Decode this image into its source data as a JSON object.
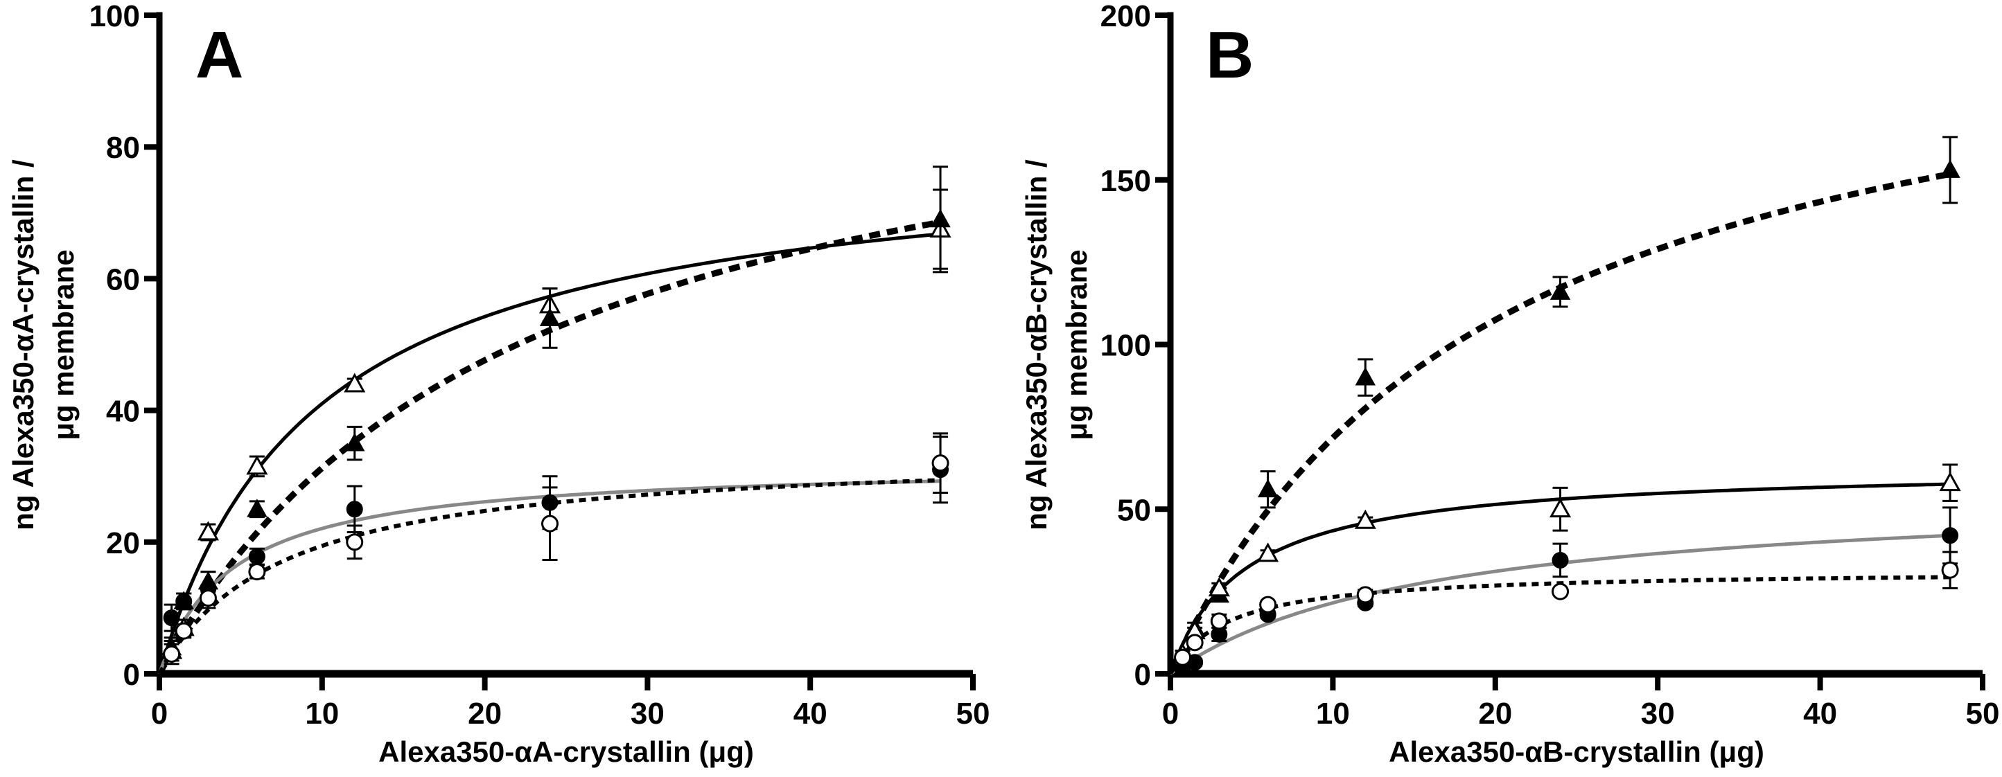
{
  "chart_data": [
    {
      "type": "scatter",
      "panel_label": "A",
      "title": "",
      "xlabel": "Alexa350-αA-crystallin (μg)",
      "ylabel_line1": "ng Alexa350-αA-crystallin /",
      "ylabel_line2": "μg membrane",
      "xlim": [
        0,
        50
      ],
      "ylim": [
        0,
        100
      ],
      "xticks": [
        0,
        10,
        20,
        30,
        40,
        50
      ],
      "yticks": [
        0,
        20,
        40,
        60,
        80,
        100
      ],
      "grid": false,
      "legend": "none",
      "x": [
        0.75,
        1.5,
        3,
        6,
        12,
        24,
        48
      ],
      "series": [
        {
          "name": "open-triangle",
          "marker": "open-triangle",
          "line_style": "solid",
          "line_color": "#000000",
          "values": [
            3.5,
            7,
            21.5,
            31.5,
            44,
            56,
            67.5
          ],
          "errors": [
            1.5,
            1.2,
            1.2,
            1.5,
            0.8,
            2.5,
            6
          ],
          "fit": {
            "model": "Bmax*x/(Kd+x)",
            "Bmax": 80,
            "Kd": 9.5
          }
        },
        {
          "name": "filled-triangle",
          "marker": "filled-triangle",
          "line_style": "dashed-heavy",
          "line_color": "#000000",
          "values": [
            4,
            11,
            14,
            25,
            35,
            54,
            69
          ],
          "errors": [
            1.5,
            1.2,
            1.5,
            1.2,
            2.5,
            4.5,
            8
          ],
          "fit": {
            "model": "Bmax*x/(Kd+x)",
            "Bmax": 100,
            "Kd": 22
          }
        },
        {
          "name": "filled-circle",
          "marker": "filled-circle",
          "line_style": "solid",
          "line_color": "#888888",
          "values": [
            8.5,
            11,
            13,
            17.8,
            25,
            26,
            31
          ],
          "errors": [
            2,
            1.2,
            2.5,
            1.2,
            3.5,
            4,
            5
          ],
          "fit": {
            "model": "Bmax*x/(Kd+x)",
            "Bmax": 32,
            "Kd": 4.5
          }
        },
        {
          "name": "open-circle",
          "marker": "open-circle",
          "line_style": "dotted",
          "line_color": "#000000",
          "values": [
            3,
            6.5,
            11.5,
            15.5,
            20,
            22.8,
            32
          ],
          "errors": [
            1.5,
            1,
            1.5,
            1,
            2.5,
            5.5,
            4.5
          ],
          "fit": {
            "model": "Bmax*x/(Kd+x)",
            "Bmax": 34,
            "Kd": 7.5
          }
        }
      ]
    },
    {
      "type": "scatter",
      "panel_label": "B",
      "title": "",
      "xlabel": "Alexa350-αB-crystallin (μg)",
      "ylabel_line1": "ng Alexa350-αB-crystallin /",
      "ylabel_line2": "μg membrane",
      "xlim": [
        0,
        50
      ],
      "ylim": [
        0,
        200
      ],
      "xticks": [
        0,
        10,
        20,
        30,
        40,
        50
      ],
      "yticks": [
        0,
        50,
        100,
        150,
        200
      ],
      "grid": false,
      "legend": "none",
      "x": [
        0.75,
        1.5,
        3,
        6,
        12,
        24,
        48
      ],
      "series": [
        {
          "name": "filled-triangle",
          "marker": "filled-triangle",
          "line_style": "dashed-heavy",
          "line_color": "#000000",
          "values": [
            6,
            14,
            24,
            56,
            90,
            116,
            153
          ],
          "errors": [
            1,
            1.5,
            2,
            5.5,
            5.5,
            4.5,
            10
          ],
          "fit": {
            "model": "Bmax*x/(Kd+x)",
            "Bmax": 215,
            "Kd": 20
          }
        },
        {
          "name": "open-triangle",
          "marker": "open-triangle",
          "line_style": "solid",
          "line_color": "#000000",
          "values": [
            6,
            13,
            26,
            36.5,
            46.5,
            50,
            58
          ],
          "errors": [
            1,
            1,
            1.5,
            1,
            1,
            6.5,
            5.5
          ],
          "fit": {
            "model": "Bmax*x/(Kd+x)",
            "Bmax": 63,
            "Kd": 4.5
          }
        },
        {
          "name": "filled-circle",
          "marker": "filled-circle",
          "line_style": "solid",
          "line_color": "#888888",
          "values": [
            1.5,
            3.5,
            12,
            18,
            21.5,
            34.5,
            42
          ],
          "errors": [
            0.5,
            1,
            2,
            1,
            1,
            5,
            8.5
          ],
          "fit": {
            "model": "Bmax*x/(Kd+x)",
            "Bmax": 56,
            "Kd": 16
          }
        },
        {
          "name": "open-circle",
          "marker": "open-circle",
          "line_style": "dotted",
          "line_color": "#000000",
          "values": [
            5,
            9.5,
            16,
            21,
            24,
            25,
            31.5
          ],
          "errors": [
            1,
            1.5,
            2,
            1,
            1.5,
            1,
            5.5
          ],
          "fit": {
            "model": "Bmax*x/(Kd+x)",
            "Bmax": 31.5,
            "Kd": 3.5
          }
        }
      ]
    }
  ]
}
